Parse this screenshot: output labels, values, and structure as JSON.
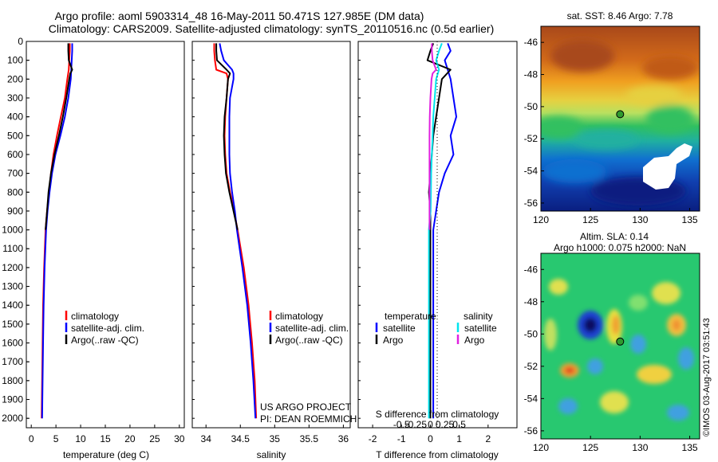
{
  "header": {
    "line1": "Argo profile: aoml 5903314_48 16-May-2011 50.471S 127.985E (DM data)",
    "line2": "Climatology: CARS2009. Satellite-adjusted climatology: synTS_20110516.nc (0.5d earlier)"
  },
  "colors": {
    "climatology": "#ff0000",
    "satellite": "#0000ff",
    "argo": "#000000",
    "sat_salinity": "#00e5ee",
    "argo_salinity": "#e020e0",
    "float_marker": "#2f9a2f"
  },
  "legends": {
    "climatology": "climatology",
    "satellite_adj": "satellite-adj. clim.",
    "argo_raw": "Argo(..raw -QC)",
    "temperature_heading": "temperature",
    "salinity_heading": "salinity",
    "satellite": "satellite",
    "argo": "Argo"
  },
  "credits": {
    "project": "US ARGO PROJECT",
    "pi": "PI: DEAN ROEMMICH",
    "imos": "©IMOS 03-Aug-2017 03:51:43"
  },
  "chart_data": [
    {
      "id": "temperature",
      "type": "line",
      "xlabel": "temperature (deg C)",
      "ylabel": "",
      "xlim": [
        -1,
        31
      ],
      "ylim": [
        2050,
        0
      ],
      "xticks": [
        0,
        5,
        10,
        15,
        20,
        25,
        30
      ],
      "yticks": [
        0,
        100,
        200,
        300,
        400,
        500,
        600,
        700,
        800,
        900,
        1000,
        1100,
        1200,
        1300,
        1400,
        1500,
        1600,
        1700,
        1800,
        1900,
        2000
      ],
      "series": [
        {
          "name": "climatology",
          "color": "#ff0000",
          "depth": [
            10,
            50,
            100,
            150,
            200,
            300,
            400,
            500,
            600,
            700,
            800,
            900,
            1000,
            1200,
            1400,
            1600,
            1800,
            2000
          ],
          "values": [
            7.8,
            7.8,
            7.7,
            7.6,
            7.3,
            6.8,
            6.0,
            5.2,
            4.5,
            4.0,
            3.6,
            3.2,
            2.9,
            2.6,
            2.4,
            2.3,
            2.2,
            2.1
          ]
        },
        {
          "name": "satellite-adj. clim.",
          "color": "#0000ff",
          "depth": [
            10,
            50,
            100,
            150,
            200,
            300,
            400,
            500,
            600,
            700,
            800,
            900,
            1000,
            1200,
            1400,
            1600,
            1800,
            2000
          ],
          "values": [
            8.3,
            8.3,
            8.2,
            8.1,
            8.0,
            7.5,
            6.8,
            5.9,
            4.9,
            4.2,
            3.7,
            3.3,
            3.0,
            2.7,
            2.5,
            2.4,
            2.3,
            2.2
          ]
        },
        {
          "name": "Argo(..raw -QC)",
          "color": "#000000",
          "depth": [
            10,
            50,
            100,
            150,
            170,
            200,
            300,
            400,
            500,
            600,
            700,
            800,
            900,
            1000
          ],
          "values": [
            7.5,
            7.5,
            7.6,
            8.3,
            7.9,
            7.7,
            7.1,
            6.4,
            5.6,
            4.7,
            4.0,
            3.5,
            3.2,
            2.9
          ]
        }
      ]
    },
    {
      "id": "salinity",
      "type": "line",
      "xlabel": "salinity",
      "ylabel": "",
      "xlim": [
        33.8,
        36.1
      ],
      "ylim": [
        2050,
        0
      ],
      "xticks": [
        34,
        34.5,
        35,
        35.5,
        36
      ],
      "series": [
        {
          "name": "climatology",
          "color": "#ff0000",
          "depth": [
            10,
            50,
            100,
            150,
            170,
            200,
            300,
            400,
            500,
            600,
            700,
            800,
            900,
            1000,
            1200,
            1400,
            1600,
            1800,
            2000
          ],
          "values": [
            34.12,
            34.12,
            34.13,
            34.15,
            34.3,
            34.32,
            34.3,
            34.28,
            34.27,
            34.28,
            34.3,
            34.35,
            34.41,
            34.46,
            34.55,
            34.62,
            34.67,
            34.71,
            34.73
          ]
        },
        {
          "name": "satellite-adj. clim.",
          "color": "#0000ff",
          "depth": [
            10,
            50,
            100,
            150,
            170,
            200,
            300,
            400,
            500,
            600,
            700,
            800,
            900,
            1000,
            1200,
            1400,
            1600,
            1800,
            2000
          ],
          "values": [
            34.2,
            34.22,
            34.26,
            34.38,
            34.4,
            34.4,
            34.35,
            34.34,
            34.34,
            34.34,
            34.35,
            34.38,
            34.42,
            34.45,
            34.53,
            34.6,
            34.65,
            34.69,
            34.72
          ]
        },
        {
          "name": "Argo(..raw -QC)",
          "color": "#000000",
          "depth": [
            10,
            50,
            100,
            150,
            170,
            200,
            300,
            400,
            500,
            600,
            700,
            800,
            900,
            1000
          ],
          "values": [
            34.15,
            34.15,
            34.16,
            34.3,
            34.35,
            34.32,
            34.3,
            34.27,
            34.26,
            34.27,
            34.29,
            34.34,
            34.4,
            34.46
          ]
        }
      ]
    },
    {
      "id": "difference",
      "type": "line",
      "xlabel": "T difference from climatology",
      "xlabel_top": "S difference from climatology",
      "ylabel": "",
      "xlim": [
        -2.5,
        3.0
      ],
      "ylim": [
        2050,
        0
      ],
      "xticks": [
        -2,
        -1,
        0,
        1,
        2
      ],
      "xticks_s": [
        -0.5,
        -0.25,
        0,
        0.25,
        0.5
      ],
      "series": [
        {
          "name": "temperature satellite",
          "color": "#0000ff",
          "depth": [
            10,
            50,
            100,
            150,
            200,
            300,
            400,
            500,
            600,
            700,
            800,
            900,
            1000,
            1200,
            1400,
            1600,
            1800,
            2000
          ],
          "values": [
            0.6,
            0.7,
            0.5,
            0.6,
            0.7,
            0.8,
            0.9,
            0.7,
            0.8,
            0.5,
            0.3,
            0.2,
            0.1,
            0.1,
            0.1,
            0.1,
            0.1,
            0.1
          ]
        },
        {
          "name": "temperature Argo",
          "color": "#000000",
          "depth": [
            10,
            50,
            100,
            150,
            200,
            300,
            400,
            500,
            600,
            700,
            800,
            900,
            1000,
            1200,
            1400,
            1600,
            1800,
            2000
          ],
          "values": [
            0.1,
            0.0,
            -0.1,
            0.7,
            0.4,
            0.3,
            0.2,
            0.1,
            0.05,
            0.0,
            -0.05,
            0.0,
            0.0,
            0.0,
            0.0,
            0.0,
            0.0,
            0.0
          ]
        },
        {
          "name": "salinity satellite",
          "color": "#00e5ee",
          "depth": [
            10,
            50,
            100,
            150,
            200,
            300,
            400,
            500,
            600,
            700,
            800,
            900,
            1000,
            1200,
            1400,
            1600,
            1800,
            2000
          ],
          "values": [
            0.4,
            0.3,
            0.2,
            0.3,
            0.2,
            0.15,
            0.1,
            0.08,
            0.05,
            0.03,
            0.02,
            0.01,
            -0.05,
            -0.05,
            -0.05,
            -0.05,
            -0.05,
            -0.05
          ]
        },
        {
          "name": "salinity Argo",
          "color": "#e020e0",
          "depth": [
            10,
            50,
            100,
            150,
            170,
            200,
            300,
            400,
            500,
            600,
            700,
            800,
            900,
            1000
          ],
          "values": [
            0.05,
            0.05,
            0.08,
            0.2,
            0.08,
            0.04,
            0.0,
            -0.02,
            -0.03,
            -0.03,
            -0.03,
            -0.03,
            -0.03,
            -0.03
          ]
        }
      ]
    },
    {
      "id": "sst_map",
      "type": "heatmap",
      "title": "sat. SST: 8.46 Argo: 7.78",
      "xlim": [
        120,
        136
      ],
      "ylim": [
        -56.5,
        -45
      ],
      "xticks": [
        120,
        125,
        130,
        135
      ],
      "yticks": [
        -46,
        -48,
        -50,
        -52,
        -54,
        -56
      ],
      "float_position": [
        127.985,
        -50.471
      ]
    },
    {
      "id": "sla_map",
      "type": "heatmap",
      "title": "Altim. SLA: 0.14",
      "title2": "Argo h1000: 0.075 h2000: NaN",
      "xlim": [
        120,
        136
      ],
      "ylim": [
        -56.5,
        -45
      ],
      "xticks": [
        120,
        125,
        130,
        135
      ],
      "yticks": [
        -46,
        -48,
        -50,
        -52,
        -54,
        -56
      ],
      "float_position": [
        127.985,
        -50.471
      ]
    }
  ]
}
